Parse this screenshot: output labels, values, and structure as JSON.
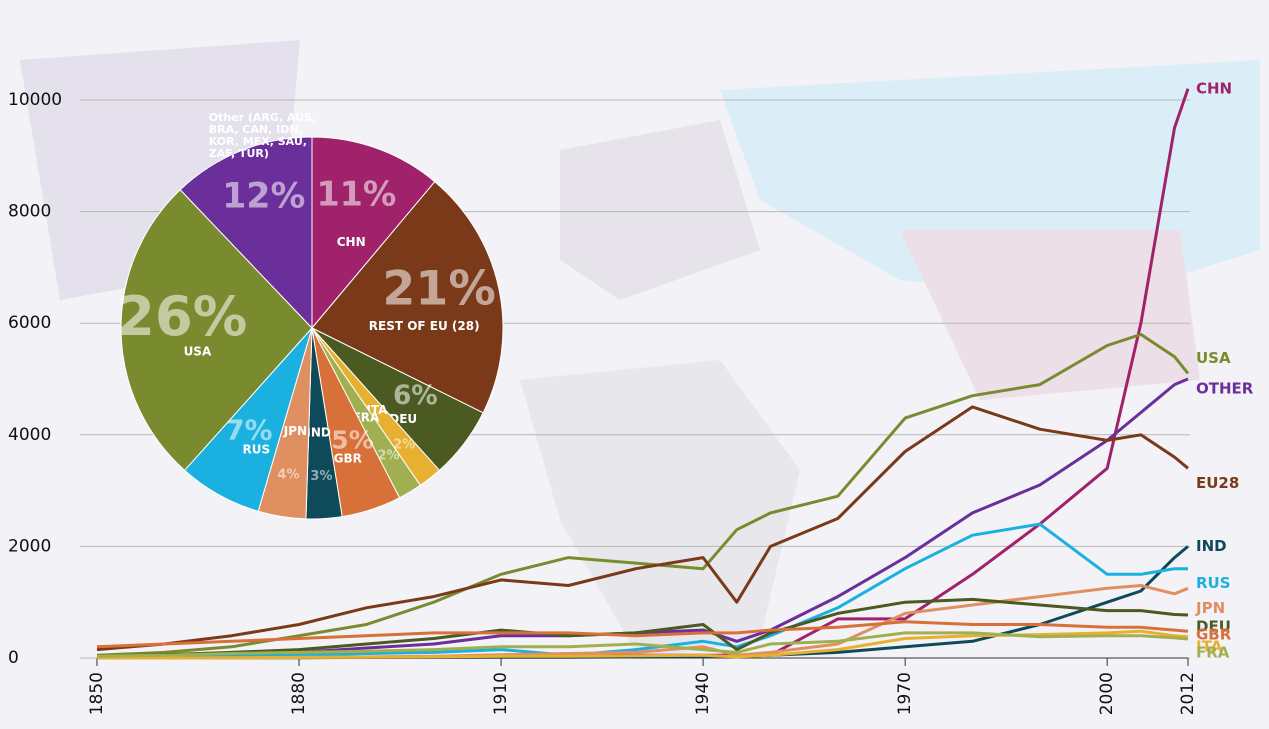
{
  "chart_data": [
    {
      "type": "line",
      "x": [
        1850,
        1860,
        1870,
        1880,
        1890,
        1900,
        1910,
        1920,
        1930,
        1940,
        1945,
        1950,
        1960,
        1970,
        1980,
        1990,
        2000,
        2005,
        2010,
        2012
      ],
      "xlim": [
        1850,
        2012
      ],
      "xticks": [
        1850,
        1880,
        1910,
        1940,
        1970,
        2000,
        2012
      ],
      "ylim": [
        0,
        10000
      ],
      "yticks": [
        0,
        2000,
        4000,
        6000,
        8000,
        10000
      ],
      "grid": true,
      "series": [
        {
          "name": "CHN",
          "color": "#a0226a",
          "values": [
            10,
            10,
            10,
            10,
            10,
            20,
            30,
            40,
            50,
            50,
            50,
            50,
            700,
            700,
            1500,
            2400,
            3400,
            6000,
            9500,
            10200
          ]
        },
        {
          "name": "USA",
          "color": "#7a8a2e",
          "values": [
            50,
            100,
            200,
            400,
            600,
            1000,
            1500,
            1800,
            1700,
            1600,
            2300,
            2600,
            2900,
            4300,
            4700,
            4900,
            5600,
            5800,
            5400,
            5100
          ]
        },
        {
          "name": "OTHER",
          "color": "#6a2f9a",
          "values": [
            10,
            30,
            60,
            100,
            180,
            250,
            400,
            400,
            450,
            500,
            300,
            500,
            1100,
            1800,
            2600,
            3100,
            3900,
            4400,
            4900,
            5000
          ]
        },
        {
          "name": "EU28",
          "color": "#7a3a1a",
          "values": [
            150,
            250,
            400,
            600,
            900,
            1100,
            1400,
            1300,
            1600,
            1800,
            1000,
            2000,
            2500,
            3700,
            4500,
            4100,
            3900,
            4000,
            3600,
            3400
          ]
        },
        {
          "name": "IND",
          "color": "#0f4a5a",
          "values": [
            0,
            0,
            5,
            5,
            10,
            10,
            15,
            15,
            20,
            20,
            30,
            50,
            100,
            200,
            300,
            600,
            1000,
            1200,
            1800,
            2000
          ]
        },
        {
          "name": "RUS",
          "color": "#1ab0e0",
          "values": [
            10,
            20,
            30,
            50,
            80,
            100,
            150,
            50,
            150,
            300,
            200,
            400,
            900,
            1600,
            2200,
            2400,
            1500,
            1500,
            1600,
            1600
          ]
        },
        {
          "name": "JPN",
          "color": "#e09060",
          "values": [
            0,
            0,
            0,
            10,
            20,
            30,
            60,
            80,
            100,
            200,
            50,
            100,
            250,
            800,
            950,
            1100,
            1250,
            1300,
            1150,
            1250
          ]
        },
        {
          "name": "DEU",
          "color": "#4a5a20",
          "values": [
            30,
            60,
            100,
            150,
            250,
            350,
            500,
            400,
            450,
            600,
            150,
            450,
            800,
            1000,
            1050,
            950,
            850,
            850,
            780,
            770
          ]
        },
        {
          "name": "GBR",
          "color": "#d8703a",
          "values": [
            200,
            250,
            300,
            350,
            400,
            450,
            450,
            450,
            400,
            450,
            450,
            500,
            550,
            650,
            600,
            600,
            550,
            550,
            500,
            480
          ]
        },
        {
          "name": "ITA",
          "color": "#e8b030",
          "values": [
            0,
            0,
            5,
            10,
            15,
            20,
            30,
            30,
            40,
            50,
            20,
            50,
            150,
            350,
            400,
            420,
            450,
            480,
            400,
            380
          ]
        },
        {
          "name": "FRA",
          "color": "#a0b050",
          "values": [
            30,
            50,
            80,
            100,
            120,
            150,
            200,
            200,
            250,
            150,
            100,
            250,
            300,
            450,
            450,
            380,
            400,
            400,
            360,
            340
          ]
        }
      ]
    },
    {
      "type": "pie",
      "categories": [
        "CHN",
        "REST OF EU (28)",
        "DEU",
        "ITA",
        "FRA",
        "GBR",
        "IND",
        "JPN",
        "RUS",
        "USA",
        "Other (ARG, AUS, BRA, CAN, IDN, KOR, MEX, SAU, ZAF, TUR)"
      ],
      "values": [
        11,
        21,
        6,
        2,
        2,
        5,
        3,
        4,
        7,
        26,
        12
      ],
      "value_labels": [
        "11%",
        "21%",
        "6%",
        "2%",
        "2%",
        "5%",
        "3%",
        "4%",
        "7%",
        "26%",
        "12%"
      ],
      "colors": [
        "#a0226a",
        "#7a3a1a",
        "#4a5a20",
        "#e8b030",
        "#a0b050",
        "#d8703a",
        "#0f4a5a",
        "#e09060",
        "#1ab0e0",
        "#7a8a2e",
        "#6a2f9a"
      ]
    }
  ]
}
